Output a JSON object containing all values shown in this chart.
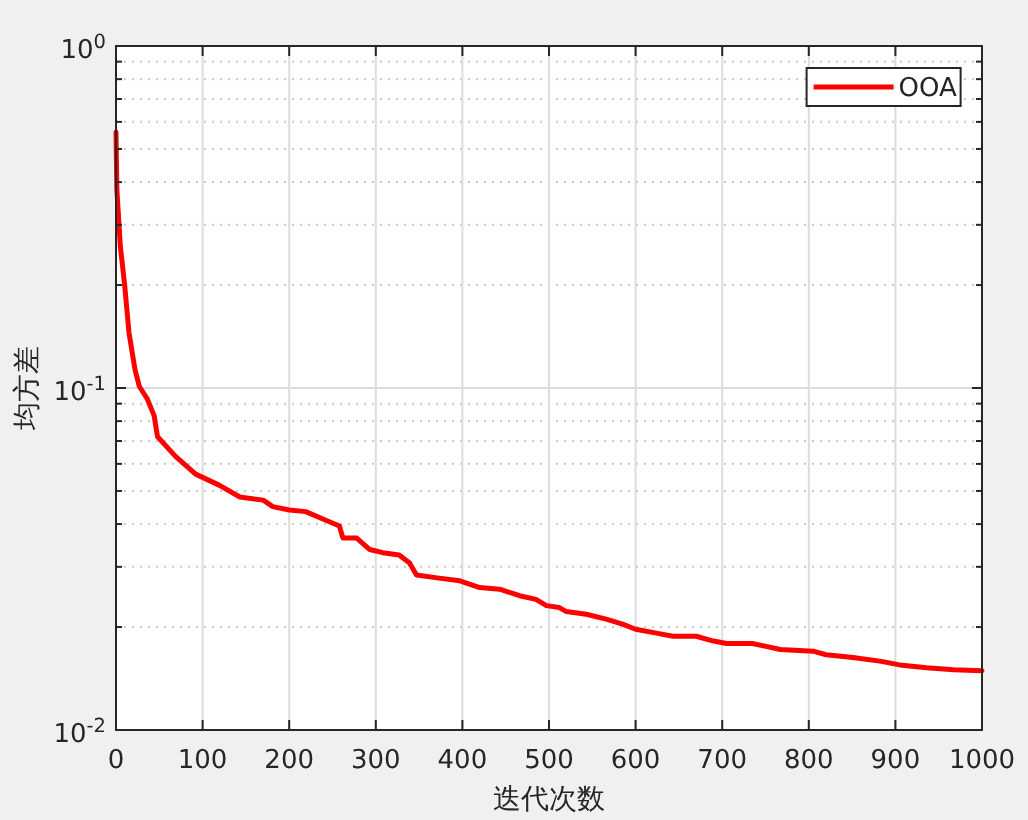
{
  "chart_data": {
    "type": "line",
    "xlabel": "迭代次数",
    "ylabel": "均方差",
    "x": [
      0,
      1,
      5,
      10,
      15,
      22,
      27,
      36,
      44,
      48,
      69,
      92,
      119,
      143,
      170,
      181,
      200,
      219,
      243,
      258,
      262,
      278,
      293,
      308,
      327,
      339,
      347,
      373,
      397,
      420,
      443,
      466,
      485,
      497,
      512,
      520,
      543,
      566,
      585,
      600,
      624,
      643,
      670,
      690,
      705,
      735,
      767,
      805,
      820,
      851,
      882,
      905,
      936,
      967,
      1000
    ],
    "series": [
      {
        "name": "OOA",
        "color": "#ff0000",
        "values": [
          0.56,
          0.38,
          0.26,
          0.2,
          0.145,
          0.113,
          0.101,
          0.093,
          0.083,
          0.072,
          0.063,
          0.056,
          0.052,
          0.048,
          0.047,
          0.045,
          0.044,
          0.0435,
          0.041,
          0.0395,
          0.0364,
          0.0364,
          0.0337,
          0.033,
          0.0325,
          0.0308,
          0.0284,
          0.0278,
          0.0273,
          0.0261,
          0.0258,
          0.0247,
          0.0241,
          0.0231,
          0.0228,
          0.0222,
          0.0218,
          0.0211,
          0.0204,
          0.0197,
          0.0192,
          0.0188,
          0.0188,
          0.0182,
          0.0179,
          0.0179,
          0.0172,
          0.017,
          0.0166,
          0.0163,
          0.0159,
          0.0155,
          0.0152,
          0.015,
          0.0149
        ]
      }
    ],
    "xlim": [
      0,
      1000
    ],
    "xticks": [
      0,
      100,
      200,
      300,
      400,
      500,
      600,
      700,
      800,
      900,
      1000
    ],
    "ylim": [
      0.01,
      1
    ],
    "yticks": [
      {
        "value": 0.01,
        "label": "10$^{-2}$"
      },
      {
        "value": 0.1,
        "label": "10$^{-1}$"
      },
      {
        "value": 1,
        "label": "10$^{0}$"
      }
    ],
    "log": "y",
    "grid": true,
    "legend": "top right",
    "line_style": "solid"
  }
}
